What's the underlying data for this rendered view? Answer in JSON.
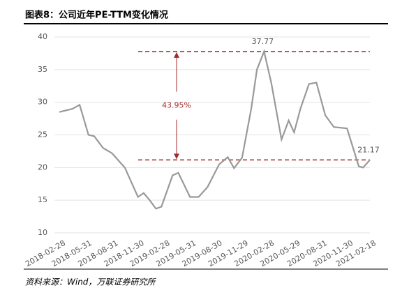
{
  "chart_data": {
    "type": "line",
    "title": "图表8：公司近年PE-TTM变化情况",
    "source": "资料来源：Wind，万联证券研究所",
    "x": [
      "2018-02-28",
      "2018-04-15",
      "2018-05-10",
      "2018-06-10",
      "2018-06-30",
      "2018-07-31",
      "2018-08-31",
      "2018-10-15",
      "2018-11-30",
      "2018-12-20",
      "2019-01-10",
      "2019-02-01",
      "2019-02-20",
      "2019-03-31",
      "2019-04-20",
      "2019-05-31",
      "2019-06-30",
      "2019-07-31",
      "2019-09-10",
      "2019-10-10",
      "2019-11-01",
      "2019-11-29",
      "2019-12-31",
      "2020-01-20",
      "2020-02-14",
      "2020-03-10",
      "2020-04-15",
      "2020-05-10",
      "2020-05-29",
      "2020-06-20",
      "2020-07-20",
      "2020-08-15",
      "2020-09-15",
      "2020-10-15",
      "2020-11-30",
      "2021-01-10",
      "2021-01-25",
      "2021-02-18"
    ],
    "series": [
      {
        "color": "#999999",
        "values": [
          28.5,
          29.0,
          29.6,
          25.0,
          24.8,
          23.0,
          22.2,
          20.0,
          15.5,
          16.1,
          15.0,
          13.7,
          14.0,
          18.8,
          19.2,
          15.5,
          15.5,
          17.0,
          20.5,
          21.6,
          19.9,
          21.5,
          29,
          35,
          37.77,
          33,
          24.3,
          27.2,
          25.4,
          29,
          32.8,
          33,
          28,
          26.2,
          26,
          20.2,
          20.0,
          21.17
        ],
        "value_labels": [
          null,
          null,
          null,
          null,
          null,
          null,
          null,
          null,
          null,
          null,
          null,
          null,
          null,
          null,
          null,
          null,
          null,
          null,
          null,
          null,
          null,
          null,
          null,
          null,
          "37.77",
          null,
          null,
          null,
          null,
          null,
          null,
          null,
          null,
          null,
          null,
          null,
          null,
          "21.17"
        ]
      }
    ],
    "xlim": [
      "2018-02-28",
      "2021-02-18"
    ],
    "xticks": [
      "2018-02-28",
      "2018-05-31",
      "2018-08-31",
      "2018-11-30",
      "2019-02-28",
      "2019-05-31",
      "2019-08-30",
      "2019-11-29",
      "2020-02-28",
      "2020-05-29",
      "2020-08-31",
      "2020-11-30",
      "2021-02-18"
    ],
    "ylim": [
      10,
      40
    ],
    "yticks": [
      10,
      15,
      20,
      25,
      30,
      35,
      40
    ],
    "grid": true,
    "hlines": [
      37.77,
      21.17
    ],
    "hline_color": "#a52a2a",
    "annotation": "43.95%"
  }
}
